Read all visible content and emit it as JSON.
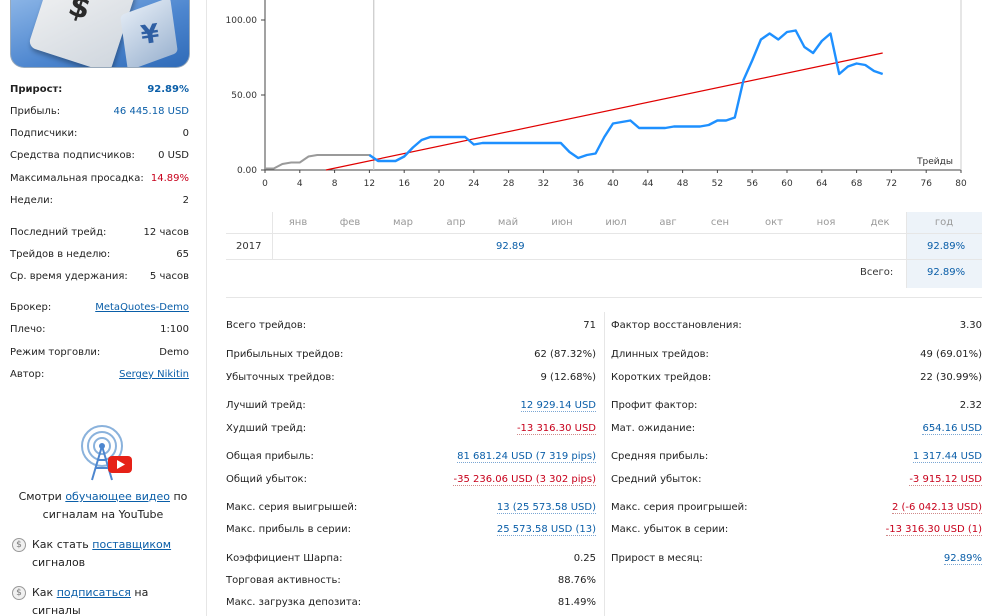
{
  "sidebar": {
    "stats": [
      {
        "label": "Прирост:",
        "value": "92.89%",
        "style": "growth"
      },
      {
        "label": "Прибыль:",
        "value": "46 445.18 USD",
        "style": "blue"
      },
      {
        "label": "Подписчики:",
        "value": "0"
      },
      {
        "label": "Средства подписчиков:",
        "value": "0 USD"
      },
      {
        "label": "Максимальная просадка:",
        "value": "14.89%",
        "style": "red"
      },
      {
        "label": "Недели:",
        "value": "2"
      },
      {
        "label": "Последний трейд:",
        "value": "12 часов"
      },
      {
        "label": "Трейдов в неделю:",
        "value": "65"
      },
      {
        "label": "Ср. время удержания:",
        "value": "5 часов"
      },
      {
        "label": "Брокер:",
        "value": "MetaQuotes-Demo",
        "style": "link"
      },
      {
        "label": "Плечо:",
        "value": "1:100"
      },
      {
        "label": "Режим торговли:",
        "value": "Demo"
      },
      {
        "label": "Автор:",
        "value": "Sergey Nikitin",
        "style": "link"
      }
    ],
    "promo": {
      "before": "Смотри ",
      "link": "обучающее видео",
      "after": " по сигналам на YouTube"
    },
    "tips": [
      {
        "before": "Как стать ",
        "link": "поставщиком",
        "after": " сигналов"
      },
      {
        "before": "Как ",
        "link": "подписаться",
        "after": " на сигналы"
      }
    ]
  },
  "chart_data": {
    "type": "line",
    "xlabel": "Трейды",
    "xlim": [
      0,
      80
    ],
    "ylim": [
      0,
      110
    ],
    "x_ticks": [
      "0",
      "4",
      "8",
      "12",
      "16",
      "20",
      "24",
      "28",
      "32",
      "36",
      "40",
      "44",
      "48",
      "52",
      "56",
      "60",
      "64",
      "68",
      "72",
      "76",
      "80"
    ],
    "y_ticks": [
      "0.00",
      "50.00",
      "100.00"
    ],
    "grid": false,
    "series": [
      {
        "points": [
          [
            0,
            1
          ],
          [
            1,
            1
          ],
          [
            2,
            4
          ],
          [
            3,
            5
          ],
          [
            4,
            5
          ],
          [
            5,
            9
          ],
          [
            6,
            10
          ],
          [
            7,
            10
          ],
          [
            8,
            10
          ],
          [
            9,
            10
          ],
          [
            10,
            10
          ],
          [
            11,
            10
          ],
          [
            12,
            10
          ],
          [
            13,
            6
          ],
          [
            14,
            6
          ],
          [
            15,
            6
          ],
          [
            16,
            9
          ],
          [
            17,
            15
          ],
          [
            18,
            20
          ],
          [
            19,
            22
          ],
          [
            20,
            22
          ],
          [
            21,
            22
          ],
          [
            22,
            22
          ],
          [
            23,
            22
          ],
          [
            24,
            17
          ],
          [
            25,
            18
          ],
          [
            26,
            18
          ],
          [
            27,
            18
          ],
          [
            28,
            18
          ],
          [
            29,
            18
          ],
          [
            30,
            18
          ],
          [
            31,
            18
          ],
          [
            32,
            18
          ],
          [
            33,
            18
          ],
          [
            34,
            18
          ],
          [
            35,
            12
          ],
          [
            36,
            8
          ],
          [
            37,
            10
          ],
          [
            38,
            11
          ],
          [
            39,
            22
          ],
          [
            40,
            31
          ],
          [
            41,
            32
          ],
          [
            42,
            33
          ],
          [
            43,
            28
          ],
          [
            44,
            28
          ],
          [
            45,
            28
          ],
          [
            46,
            28
          ],
          [
            47,
            29
          ],
          [
            48,
            29
          ],
          [
            49,
            29
          ],
          [
            50,
            29
          ],
          [
            51,
            30
          ],
          [
            52,
            33
          ],
          [
            53,
            33
          ],
          [
            54,
            35
          ],
          [
            55,
            60
          ],
          [
            56,
            73
          ],
          [
            57,
            87
          ],
          [
            58,
            91
          ],
          [
            59,
            87
          ],
          [
            60,
            92
          ],
          [
            61,
            93
          ],
          [
            62,
            82
          ],
          [
            63,
            78
          ],
          [
            64,
            86
          ],
          [
            65,
            91
          ],
          [
            66,
            64
          ],
          [
            67,
            69
          ],
          [
            68,
            71
          ],
          [
            69,
            70
          ],
          [
            70,
            66
          ],
          [
            71,
            64
          ]
        ]
      },
      {
        "points": [
          [
            7,
            0
          ],
          [
            71,
            78
          ]
        ]
      }
    ],
    "colors": {
      "equity": "#1e90ff",
      "trend": "#e00000",
      "marker": "#c8c8c8"
    }
  },
  "months_table": {
    "headers": [
      "янв",
      "фев",
      "мар",
      "апр",
      "май",
      "июн",
      "июл",
      "авг",
      "сен",
      "окт",
      "ноя",
      "дек",
      "год"
    ],
    "year": "2017",
    "cells": {
      "may": "92.89"
    },
    "year_total": "92.89%",
    "total_label": "Всего:",
    "total_value": "92.89%"
  },
  "stats": {
    "left": [
      {
        "label": "Всего трейдов:",
        "value": "71"
      },
      {
        "label": "Прибыльных трейдов:",
        "value": "62 (87.32%)"
      },
      {
        "label": "Убыточных трейдов:",
        "value": "9 (12.68%)"
      },
      {
        "label": "Лучший трейд:",
        "value": "12 929.14 USD",
        "style": "blue"
      },
      {
        "label": "Худший трейд:",
        "value": "-13 316.30 USD",
        "style": "red"
      },
      {
        "label": "Общая прибыль:",
        "value": "81 681.24 USD (7 319 pips)",
        "style": "blue"
      },
      {
        "label": "Общий убыток:",
        "value": "-35 236.06 USD (3 302 pips)",
        "style": "red"
      },
      {
        "label": "Макс. серия выигрышей:",
        "value": "13 (25 573.58 USD)",
        "style": "mixb"
      },
      {
        "label": "Макс. прибыль в серии:",
        "value": "25 573.58 USD (13)",
        "style": "mixb2"
      },
      {
        "label": "Коэффициент Шарпа:",
        "value": "0.25"
      },
      {
        "label": "Торговая активность:",
        "value": "88.76%"
      },
      {
        "label": "Макс. загрузка депозита:",
        "value": "81.49%"
      }
    ],
    "right": [
      {
        "label": "Фактор восстановления:",
        "value": "3.30"
      },
      {
        "label": "Длинных трейдов:",
        "value": "49 (69.01%)"
      },
      {
        "label": "Коротких трейдов:",
        "value": "22 (30.99%)"
      },
      {
        "label": "Профит фактор:",
        "value": "2.32"
      },
      {
        "label": "Мат. ожидание:",
        "value": "654.16 USD",
        "style": "blue"
      },
      {
        "label": "Средняя прибыль:",
        "value": "1 317.44 USD",
        "style": "blue"
      },
      {
        "label": "Средний убыток:",
        "value": "-3 915.12 USD",
        "style": "red"
      },
      {
        "label": "Макс. серия проигрышей:",
        "value": "2 (-6 042.13 USD)",
        "style": "mixr"
      },
      {
        "label": "Макс. убыток в серии:",
        "value": "-13 316.30 USD (1)",
        "style": "mixr2"
      },
      {
        "label": "Прирост в месяц:",
        "value": "92.89%",
        "style": "blue"
      }
    ]
  }
}
